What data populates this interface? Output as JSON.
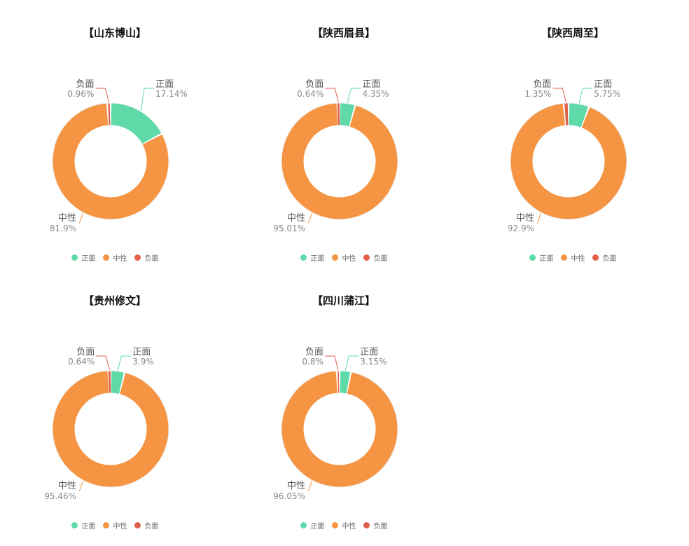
{
  "colors": {
    "正面": "#5fd9a8",
    "中性": "#f59442",
    "负面": "#e0604c"
  },
  "legend_labels": [
    "正面",
    "中性",
    "负面"
  ],
  "chart_data": [
    {
      "type": "pie",
      "title": "【山东博山】",
      "slices": [
        {
          "label": "正面",
          "value": 17.14,
          "value_label": "17.14%"
        },
        {
          "label": "中性",
          "value": 81.9,
          "value_label": "81.9%"
        },
        {
          "label": "负面",
          "value": 0.96,
          "value_label": "0.96%"
        }
      ],
      "legend": [
        "正面",
        "中性",
        "负面"
      ]
    },
    {
      "type": "pie",
      "title": "【陕西眉县】",
      "slices": [
        {
          "label": "正面",
          "value": 4.35,
          "value_label": "4.35%"
        },
        {
          "label": "中性",
          "value": 95.01,
          "value_label": "95.01%"
        },
        {
          "label": "负面",
          "value": 0.64,
          "value_label": "0.64%"
        }
      ],
      "legend": [
        "正面",
        "中性",
        "负面"
      ]
    },
    {
      "type": "pie",
      "title": "【陕西周至】",
      "slices": [
        {
          "label": "正面",
          "value": 5.75,
          "value_label": "5.75%"
        },
        {
          "label": "中性",
          "value": 92.9,
          "value_label": "92.9%"
        },
        {
          "label": "负面",
          "value": 1.35,
          "value_label": "1.35%"
        }
      ],
      "legend": [
        "正面",
        "中性",
        "负面"
      ]
    },
    {
      "type": "pie",
      "title": "【贵州修文】",
      "slices": [
        {
          "label": "正面",
          "value": 3.9,
          "value_label": "3.9%"
        },
        {
          "label": "中性",
          "value": 95.46,
          "value_label": "95.46%"
        },
        {
          "label": "负面",
          "value": 0.64,
          "value_label": "0.64%"
        }
      ],
      "legend": [
        "正面",
        "中性",
        "负面"
      ]
    },
    {
      "type": "pie",
      "title": "【四川蒲江】",
      "slices": [
        {
          "label": "正面",
          "value": 3.15,
          "value_label": "3.15%"
        },
        {
          "label": "中性",
          "value": 96.05,
          "value_label": "96.05%"
        },
        {
          "label": "负面",
          "value": 0.8,
          "value_label": "0.8%"
        }
      ],
      "legend": [
        "正面",
        "中性",
        "负面"
      ]
    }
  ]
}
